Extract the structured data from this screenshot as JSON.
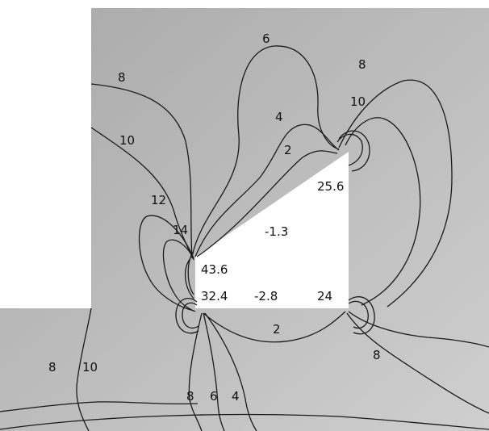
{
  "colors": {
    "field_light": "#cfcfcf",
    "field_dark": "#a9a9a9",
    "contour": "#1a1a1a",
    "background": "#ffffff",
    "void": "#ffffff"
  },
  "contour_labels": [
    {
      "id": "c6-top",
      "text": "6"
    },
    {
      "id": "c8-right",
      "text": "8"
    },
    {
      "id": "c8-left",
      "text": "8"
    },
    {
      "id": "c10-right",
      "text": "10"
    },
    {
      "id": "c10-left",
      "text": "10"
    },
    {
      "id": "c4-top",
      "text": "4"
    },
    {
      "id": "c2-top",
      "text": "2"
    },
    {
      "id": "c12",
      "text": "12"
    },
    {
      "id": "c14",
      "text": "14"
    },
    {
      "id": "c2-bottom",
      "text": "2"
    },
    {
      "id": "c8-bottom-right",
      "text": "8"
    },
    {
      "id": "c8-bottom-left",
      "text": "8"
    },
    {
      "id": "c10-bottom-left",
      "text": "10"
    },
    {
      "id": "c8-bottom-mid",
      "text": "8"
    },
    {
      "id": "c6-bottom-mid",
      "text": "6"
    },
    {
      "id": "c4-bottom-mid",
      "text": "4"
    }
  ],
  "value_labels": [
    {
      "id": "v25-6",
      "text": "25.6"
    },
    {
      "id": "v-1-3",
      "text": "-1.3"
    },
    {
      "id": "v43-6",
      "text": "43.6"
    },
    {
      "id": "v32-4",
      "text": "32.4"
    },
    {
      "id": "v-2-8",
      "text": "-2.8"
    },
    {
      "id": "v24",
      "text": "24"
    }
  ]
}
